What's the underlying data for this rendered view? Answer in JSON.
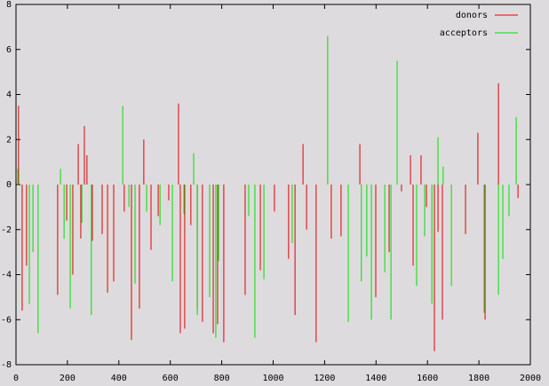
{
  "chart_data": {
    "type": "impulse",
    "xlim": [
      0,
      2000
    ],
    "xticks": [
      0,
      200,
      400,
      600,
      800,
      1000,
      1200,
      1400,
      1600,
      1800,
      2000
    ],
    "ylim": [
      -8,
      8
    ],
    "yticks": [
      -8,
      -6,
      -4,
      -2,
      0,
      2,
      4,
      6,
      8
    ],
    "legend": "top-right",
    "series": [
      {
        "name": "donors",
        "color": "#e00000",
        "x": [
          10,
          24,
          41,
          162,
          197,
          221,
          242,
          252,
          266,
          276,
          297,
          335,
          356,
          380,
          421,
          449,
          480,
          497,
          525,
          553,
          594,
          632,
          639,
          656,
          680,
          705,
          725,
          767,
          784,
          808,
          891,
          950,
          1005,
          1060,
          1085,
          1116,
          1130,
          1167,
          1226,
          1264,
          1337,
          1399,
          1451,
          1499,
          1534,
          1544,
          1575,
          1596,
          1627,
          1641,
          1658,
          1748,
          1796,
          1824,
          1876,
          1952
        ],
        "values": [
          3.5,
          -5.6,
          -3.6,
          -4.9,
          -1.6,
          -4.0,
          1.8,
          -2.4,
          2.6,
          1.3,
          -2.5,
          -2.2,
          -4.8,
          -4.3,
          -1.2,
          -6.9,
          -5.5,
          2.0,
          -2.9,
          -1.4,
          -0.7,
          3.6,
          -6.6,
          -6.4,
          -1.8,
          -5.5,
          -6.1,
          -6.6,
          -6.2,
          -7.0,
          -4.9,
          -3.8,
          -1.2,
          -3.3,
          -5.8,
          1.8,
          -2.0,
          -7.0,
          -2.4,
          -2.3,
          1.8,
          -5.0,
          -3.0,
          -0.3,
          1.3,
          -3.6,
          1.3,
          -1.0,
          -7.4,
          -2.1,
          -6.0,
          -2.2,
          2.3,
          -6.0,
          4.5,
          -0.6
        ]
      },
      {
        "name": "acceptors",
        "color": "#00e000",
        "x": [
          7,
          52,
          66,
          86,
          173,
          187,
          211,
          256,
          293,
          415,
          439,
          463,
          508,
          560,
          608,
          653,
          691,
          705,
          753,
          777,
          788,
          905,
          929,
          964,
          1074,
          1212,
          1292,
          1343,
          1364,
          1382,
          1434,
          1458,
          1482,
          1558,
          1589,
          1617,
          1641,
          1661,
          1693,
          1820,
          1876,
          1893,
          1917,
          1945
        ],
        "values": [
          0.7,
          -5.3,
          -3.0,
          -6.6,
          0.7,
          -2.4,
          -5.5,
          -1.7,
          -5.8,
          3.5,
          -1.0,
          -4.4,
          -1.2,
          -1.8,
          -4.3,
          -1.3,
          1.4,
          -5.8,
          -5.0,
          -6.8,
          -3.4,
          -1.4,
          -6.8,
          -4.2,
          -2.6,
          6.6,
          -6.1,
          -4.3,
          -3.2,
          -6.0,
          -3.9,
          -6.0,
          5.5,
          -4.5,
          -2.3,
          -5.3,
          2.1,
          0.8,
          -4.5,
          -5.7,
          -4.9,
          -3.3,
          -1.4,
          3.0
        ]
      }
    ]
  }
}
